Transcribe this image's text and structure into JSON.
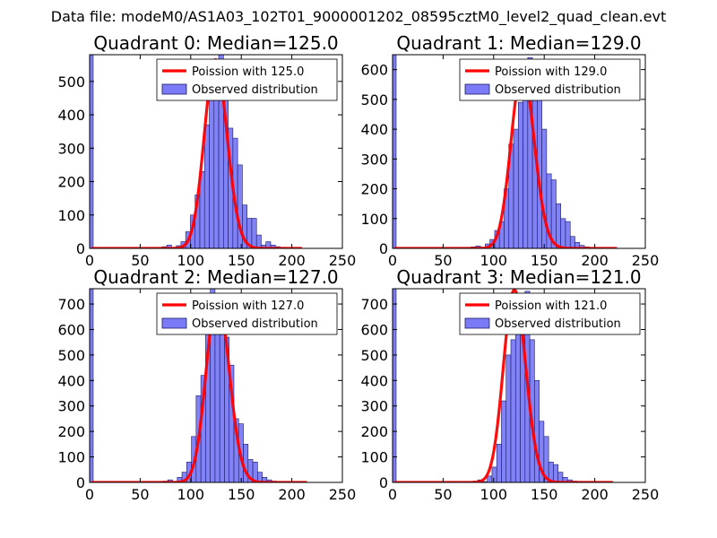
{
  "figure_title": "Data file: modeM0/AS1A03_102T01_9000001202_08595cztM0_level2_quad_clean.evt",
  "colors": {
    "bar_fill": "#7b7bf7",
    "bar_edge": "#1a1a66",
    "line": "#ff0000",
    "axes": "#000000"
  },
  "chart_data": [
    {
      "type": "bar",
      "title": "Quadrant 0: Median=125.0",
      "xlim": [
        0,
        250
      ],
      "ylim": [
        0,
        580
      ],
      "xticks": [
        0,
        50,
        100,
        150,
        200,
        250
      ],
      "yticks": [
        0,
        100,
        200,
        300,
        400,
        500
      ],
      "legend": {
        "line_label": "Poission with 125.0",
        "bar_label": "Observed distribution",
        "loc": "upper right"
      },
      "hist": {
        "bin_start": 67,
        "bin_width": 4.67,
        "counts": [
          2,
          5,
          10,
          2,
          8,
          20,
          50,
          100,
          160,
          230,
          370,
          510,
          560,
          600,
          510,
          360,
          330,
          250,
          130,
          90,
          90,
          40,
          10,
          20,
          10,
          5,
          3,
          1
        ],
        "edge_bar_value": 580
      },
      "poisson": {
        "mean": 125.0,
        "peak": 565,
        "x_range": [
          2,
          210
        ]
      }
    },
    {
      "type": "bar",
      "title": "Quadrant 1: Median=129.0",
      "xlim": [
        0,
        250
      ],
      "ylim": [
        0,
        650
      ],
      "xticks": [
        0,
        50,
        100,
        150,
        200,
        250
      ],
      "yticks": [
        0,
        100,
        200,
        300,
        400,
        500,
        600
      ],
      "legend": {
        "line_label": "Poission with 129.0",
        "bar_label": "Observed distribution",
        "loc": "upper right"
      },
      "hist": {
        "bin_start": 73,
        "bin_width": 4.67,
        "counts": [
          2,
          5,
          8,
          2,
          15,
          30,
          60,
          90,
          200,
          350,
          400,
          490,
          580,
          640,
          610,
          530,
          400,
          250,
          230,
          150,
          100,
          90,
          40,
          20,
          10,
          5,
          3,
          1
        ],
        "edge_bar_value": 650
      },
      "poisson": {
        "mean": 129.0,
        "peak": 600,
        "x_range": [
          2,
          222
        ]
      }
    },
    {
      "type": "bar",
      "title": "Quadrant 2: Median=127.0",
      "xlim": [
        0,
        250
      ],
      "ylim": [
        0,
        760
      ],
      "xticks": [
        0,
        50,
        100,
        150,
        200,
        250
      ],
      "yticks": [
        0,
        100,
        200,
        300,
        400,
        500,
        600,
        700
      ],
      "legend": {
        "line_label": "Poission with 127.0",
        "bar_label": "Observed distribution",
        "loc": "upper right"
      },
      "hist": {
        "bin_start": 68,
        "bin_width": 4.67,
        "counts": [
          2,
          5,
          10,
          2,
          20,
          40,
          80,
          180,
          340,
          420,
          600,
          770,
          730,
          700,
          570,
          460,
          250,
          230,
          150,
          90,
          80,
          40,
          20,
          10,
          5,
          3,
          1
        ],
        "edge_bar_value": 760
      },
      "poisson": {
        "mean": 127.0,
        "peak": 735,
        "x_range": [
          2,
          215
        ]
      }
    },
    {
      "type": "bar",
      "title": "Quadrant 3: Median=121.0",
      "xlim": [
        0,
        250
      ],
      "ylim": [
        0,
        760
      ],
      "xticks": [
        0,
        50,
        100,
        150,
        200,
        250
      ],
      "yticks": [
        0,
        100,
        200,
        300,
        400,
        500,
        600,
        700
      ],
      "legend": {
        "line_label": "Poission with 121.0",
        "bar_label": "Observed distribution",
        "loc": "upper right"
      },
      "hist": {
        "bin_start": 75,
        "bin_width": 4.67,
        "counts": [
          2,
          5,
          10,
          3,
          25,
          60,
          150,
          320,
          500,
          560,
          680,
          720,
          750,
          560,
          400,
          240,
          180,
          80,
          70,
          40,
          20,
          10,
          5,
          3,
          1
        ],
        "edge_bar_value": 760
      },
      "poisson": {
        "mean": 121.0,
        "peak": 755,
        "x_range": [
          2,
          218
        ]
      }
    }
  ]
}
